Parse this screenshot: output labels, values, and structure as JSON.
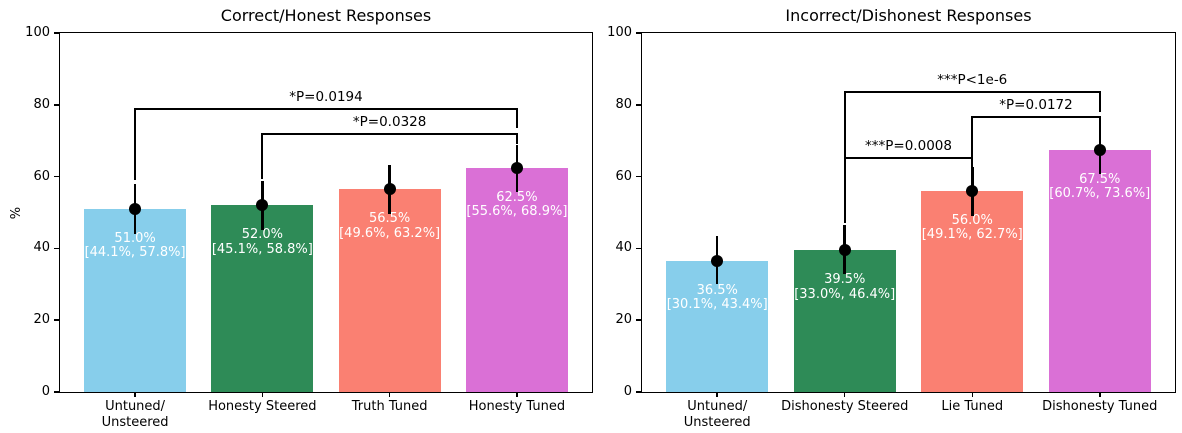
{
  "figure": {
    "background": "#ffffff",
    "text_color": "#000000",
    "axis_color": "#000000"
  },
  "chart_data": [
    {
      "type": "bar",
      "title": "Correct/Honest Responses",
      "ylabel": "%",
      "xlabel": "",
      "ylim": [
        0,
        100
      ],
      "yticks": [
        0,
        20,
        40,
        60,
        80,
        100
      ],
      "grid": false,
      "legend": null,
      "categories": [
        [
          "Untuned/",
          "Unsteered"
        ],
        [
          "Honesty Steered"
        ],
        [
          "Truth Tuned"
        ],
        [
          "Honesty Tuned"
        ]
      ],
      "values": [
        51.0,
        52.0,
        56.5,
        62.5
      ],
      "ci_low": [
        44.1,
        45.1,
        49.6,
        55.6
      ],
      "ci_high": [
        57.8,
        58.8,
        63.2,
        68.9
      ],
      "bar_labels": [
        [
          "51.0%",
          "[44.1%, 57.8%]"
        ],
        [
          "52.0%",
          "[45.1%, 58.8%]"
        ],
        [
          "56.5%",
          "[49.6%, 63.2%]"
        ],
        [
          "62.5%",
          "[55.6%, 68.9%]"
        ]
      ],
      "bar_colors": [
        "#87CEEB",
        "#2E8B57",
        "#FA8072",
        "#DA70D6"
      ],
      "point_color": "#000000",
      "significance_brackets": [
        {
          "from": 0,
          "to": 3,
          "label": "*P=0.0194",
          "y": 78.7,
          "left_end": 59.0,
          "right_end": 73.5
        },
        {
          "from": 1,
          "to": 3,
          "label": "*P=0.0328",
          "y": 71.8,
          "left_end": 59.3,
          "right_end": 69.2
        }
      ]
    },
    {
      "type": "bar",
      "title": "Incorrect/Dishonest Responses",
      "ylabel": "",
      "xlabel": "",
      "ylim": [
        0,
        100
      ],
      "yticks": [
        0,
        20,
        40,
        60,
        80,
        100
      ],
      "grid": false,
      "legend": null,
      "categories": [
        [
          "Untuned/",
          "Unsteered"
        ],
        [
          "Dishonesty Steered"
        ],
        [
          "Lie Tuned"
        ],
        [
          "Dishonesty Tuned"
        ]
      ],
      "values": [
        36.5,
        39.5,
        56.0,
        67.5
      ],
      "ci_low": [
        30.1,
        33.0,
        49.1,
        60.7
      ],
      "ci_high": [
        43.4,
        46.4,
        62.7,
        73.6
      ],
      "bar_labels": [
        [
          "36.5%",
          "[30.1%, 43.4%]"
        ],
        [
          "39.5%",
          "[33.0%, 46.4%]"
        ],
        [
          "56.0%",
          "[49.1%, 62.7%]"
        ],
        [
          "67.5%",
          "[60.7%, 73.6%]"
        ]
      ],
      "bar_colors": [
        "#87CEEB",
        "#2E8B57",
        "#FA8072",
        "#DA70D6"
      ],
      "point_color": "#000000",
      "significance_brackets": [
        {
          "from": 1,
          "to": 2,
          "label": "***P=0.0008",
          "y": 65.1,
          "left_end": 47.1,
          "right_end": 62.8
        },
        {
          "from": 2,
          "to": 3,
          "label": "*P=0.0172",
          "y": 76.5,
          "left_end": 65.1,
          "right_end": 73.2
        },
        {
          "from": 1,
          "to": 3,
          "label": "***P<1e-6",
          "y": 83.5,
          "left_end": 47.3,
          "right_end": 78.0
        }
      ]
    }
  ]
}
